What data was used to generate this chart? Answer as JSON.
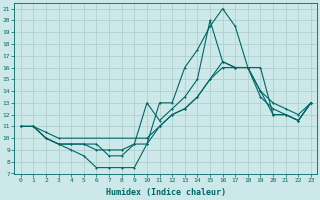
{
  "xlabel": "Humidex (Indice chaleur)",
  "background_color": "#cce8e8",
  "grid_color": "#aacccc",
  "line_color": "#006666",
  "xlim": [
    -0.5,
    23.5
  ],
  "ylim": [
    7,
    21.5
  ],
  "xticks": [
    0,
    1,
    2,
    3,
    4,
    5,
    6,
    7,
    8,
    9,
    10,
    11,
    12,
    13,
    14,
    15,
    16,
    17,
    18,
    19,
    20,
    21,
    22,
    23
  ],
  "yticks": [
    7,
    8,
    9,
    10,
    11,
    12,
    13,
    14,
    15,
    16,
    17,
    18,
    19,
    20,
    21
  ],
  "line1_x": [
    0,
    1,
    2,
    3,
    4,
    5,
    6,
    7,
    8,
    9,
    10,
    11,
    12,
    13,
    14,
    15,
    16,
    17,
    18,
    19,
    20,
    21,
    22,
    23
  ],
  "line1_y": [
    11,
    11,
    10,
    9.5,
    9,
    8.5,
    7.5,
    7.5,
    7.5,
    7.5,
    9.5,
    13,
    13,
    16,
    17.5,
    19.5,
    21,
    19.5,
    16,
    16,
    12,
    12,
    11.5,
    13
  ],
  "line2_x": [
    0,
    1,
    2,
    3,
    10,
    11,
    12,
    13,
    14,
    15,
    16,
    17,
    18,
    19,
    20,
    21,
    22,
    23
  ],
  "line2_y": [
    11,
    11,
    10.5,
    10,
    10,
    11,
    12,
    12.5,
    13.5,
    15,
    16.5,
    16,
    16,
    14,
    13,
    12.5,
    12,
    13
  ],
  "line3_x": [
    0,
    1,
    2,
    3,
    4,
    5,
    6,
    7,
    8,
    9,
    10,
    11,
    12,
    13,
    14,
    15,
    16,
    17,
    18,
    19,
    20,
    21,
    22,
    23
  ],
  "line3_y": [
    11,
    11,
    10,
    9.5,
    9.5,
    9.5,
    9,
    9,
    9,
    9.5,
    9.5,
    11,
    12,
    12.5,
    13.5,
    15,
    16,
    16,
    16,
    13.5,
    12.5,
    12,
    11.5,
    13
  ],
  "line4_x": [
    0,
    1,
    2,
    3,
    4,
    5,
    6,
    7,
    8,
    9,
    10,
    11,
    12,
    13,
    14,
    15,
    16,
    17,
    18,
    19,
    20,
    21,
    22,
    23
  ],
  "line4_y": [
    11,
    11,
    10,
    9.5,
    9.5,
    9.5,
    9.5,
    8.5,
    8.5,
    9.5,
    13,
    11.5,
    12.5,
    13.5,
    15,
    20,
    16.5,
    16,
    16,
    14,
    12,
    12,
    11.5,
    13
  ]
}
